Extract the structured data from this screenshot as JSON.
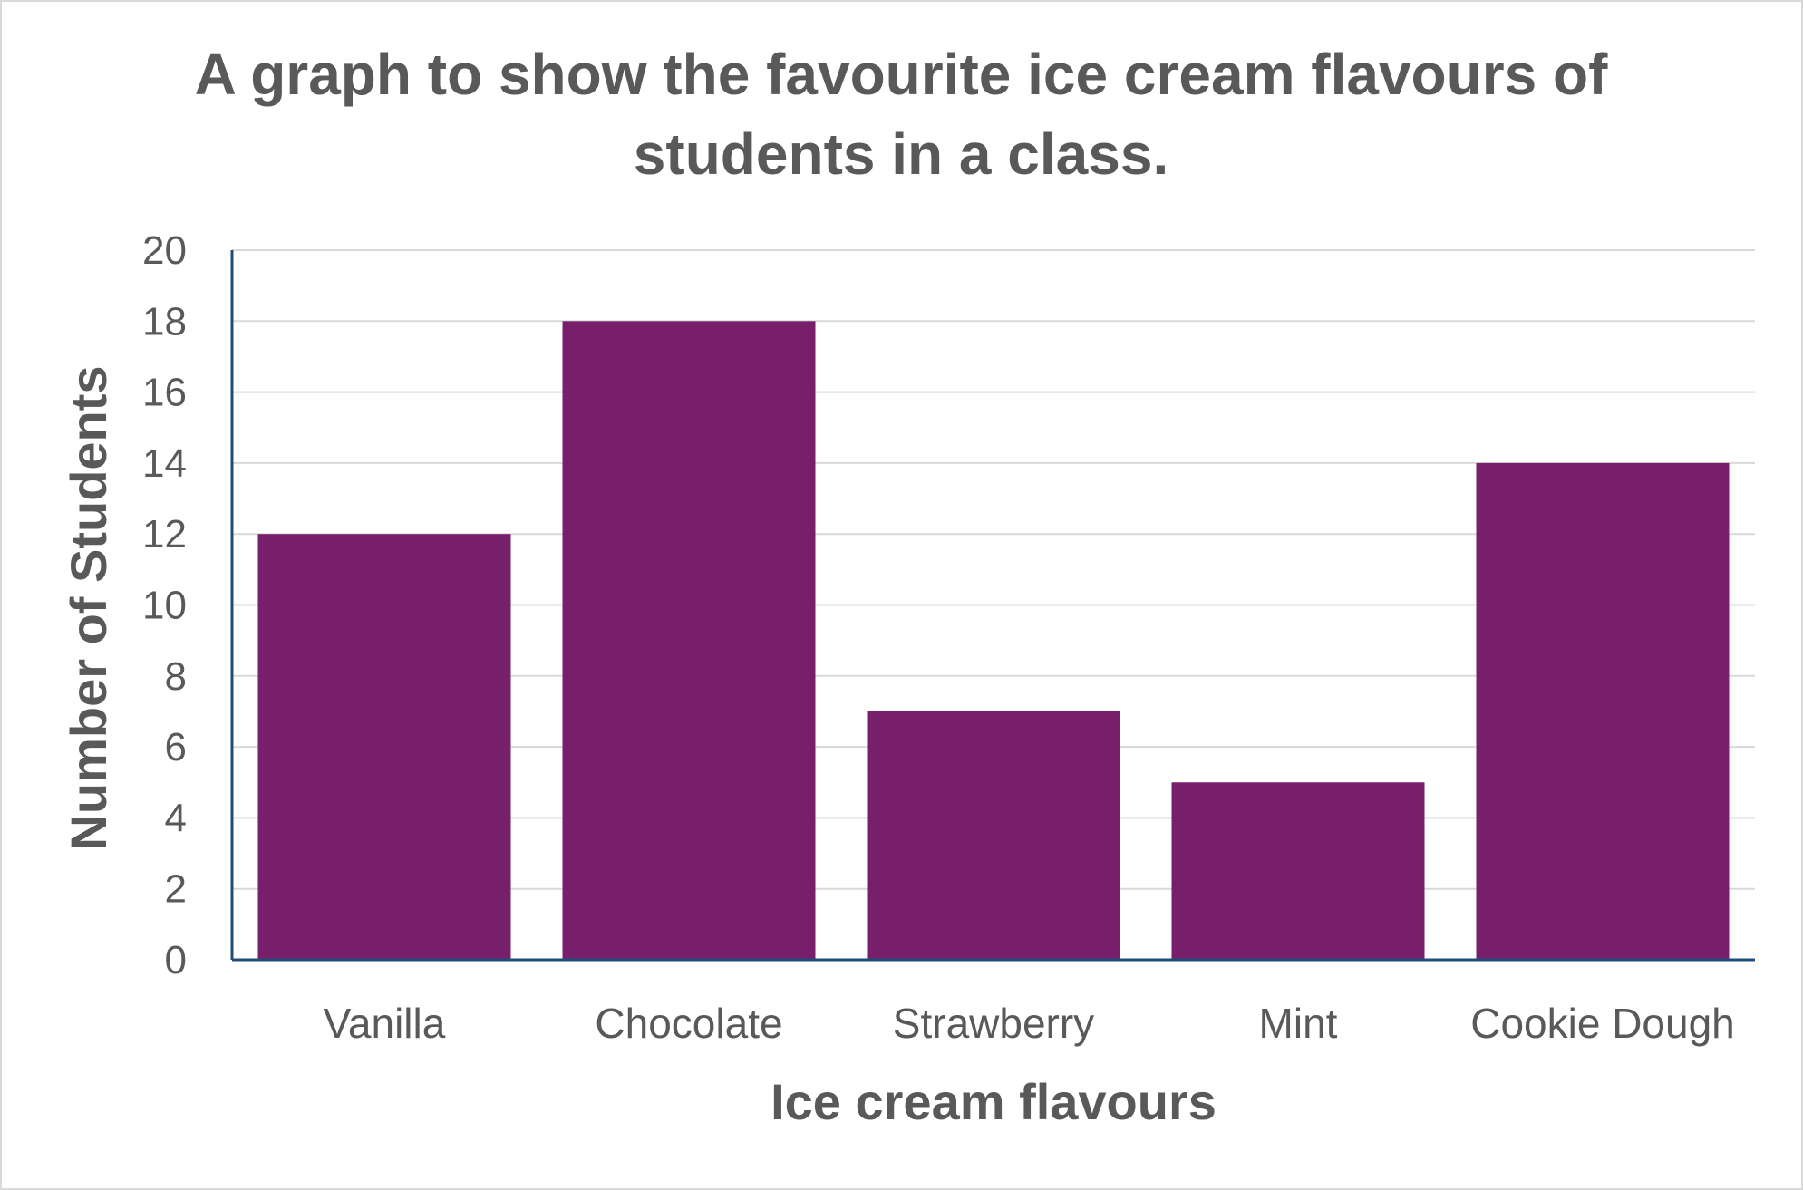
{
  "chart_data": {
    "type": "bar",
    "title_lines": [
      "A graph to show the favourite ice cream flavours of",
      "students in a class."
    ],
    "xlabel": "Ice cream flavours",
    "ylabel": "Number of Students",
    "categories": [
      "Vanilla",
      "Chocolate",
      "Strawberry",
      "Mint",
      "Cookie Dough"
    ],
    "values": [
      12,
      18,
      7,
      5,
      14
    ],
    "ylim": [
      0,
      20
    ],
    "yticks": [
      0,
      2,
      4,
      6,
      8,
      10,
      12,
      14,
      16,
      18,
      20
    ],
    "grid": true,
    "legend": "none",
    "colors": {
      "bar": "#771f6a",
      "axis": "#1f4e79",
      "grid": "#d9d9d9",
      "text": "#595959"
    }
  }
}
